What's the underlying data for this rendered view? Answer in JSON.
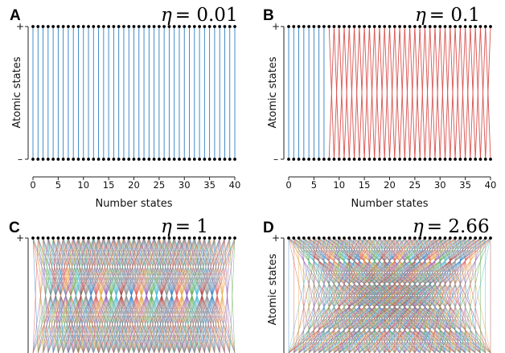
{
  "chart_data": [
    {
      "panel": "A",
      "type": "line",
      "eta_symbol": "η",
      "eta_value": "= 0.01",
      "xlabel": "Number states",
      "ylabel": "Atomic states",
      "xlim": [
        0,
        40
      ],
      "xticks": [
        "0",
        "5",
        "10",
        "15",
        "20",
        "25",
        "30",
        "35",
        "40"
      ],
      "ystates": [
        "+",
        "–"
      ],
      "n_states": 41,
      "coupling_shift": 0,
      "onset_n": 0,
      "dominant_color": "#2f7fc0",
      "show_xaxis": true
    },
    {
      "panel": "B",
      "type": "line",
      "eta_symbol": "η",
      "eta_value": "= 0.1",
      "xlabel": "Number states",
      "ylabel": "Atomic states",
      "xlim": [
        0,
        40
      ],
      "xticks": [
        "0",
        "5",
        "10",
        "15",
        "20",
        "25",
        "30",
        "35",
        "40"
      ],
      "ystates": [
        "+",
        "–"
      ],
      "n_states": 41,
      "coupling_shift": 1,
      "onset_n": 8,
      "dominant_color": "#d9534f",
      "show_xaxis": true
    },
    {
      "panel": "C",
      "type": "line",
      "eta_symbol": "η",
      "eta_value": "= 1",
      "xlabel": "",
      "ylabel": "",
      "xlim": [
        0,
        40
      ],
      "xticks": [],
      "ystates": [
        "+"
      ],
      "n_states": 41,
      "coupling_shift": 9,
      "onset_n": 0,
      "dominant_color": "multicolor",
      "show_xaxis": false
    },
    {
      "panel": "D",
      "type": "line",
      "eta_symbol": "η",
      "eta_value": "= 2.66",
      "xlabel": "",
      "ylabel": "Atomic states",
      "xlim": [
        0,
        40
      ],
      "xticks": [],
      "ystates": [
        "+"
      ],
      "n_states": 41,
      "coupling_shift": 30,
      "onset_n": 0,
      "dominant_color": "multicolor",
      "show_xaxis": false
    }
  ],
  "palette": [
    "#2f7fc0",
    "#d9534f",
    "#e3a33b",
    "#8e5bb5",
    "#5aa845",
    "#46b4d6",
    "#a63b3b",
    "#888888"
  ]
}
